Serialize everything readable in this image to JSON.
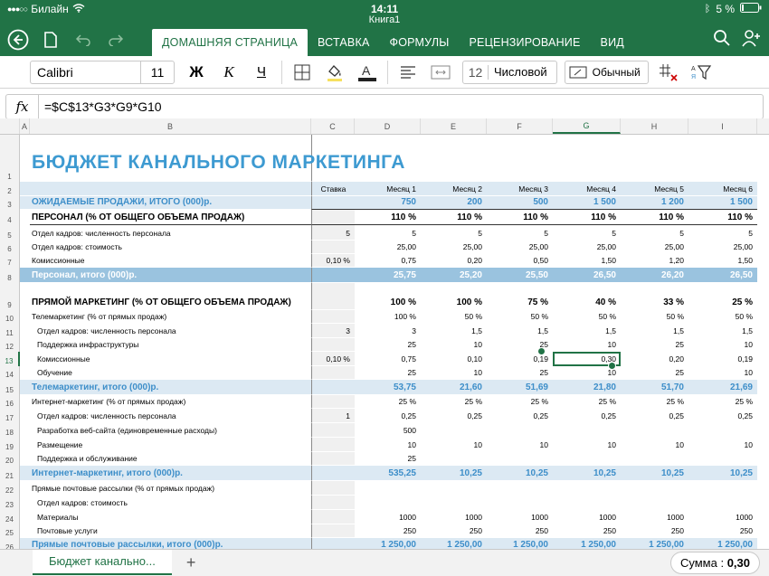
{
  "status": {
    "carrier": "Билайн",
    "time": "14:11",
    "battery": "5 %"
  },
  "doc_title": "Книга1",
  "tabs": [
    "ДОМАШНЯЯ СТРАНИЦА",
    "ВСТАВКА",
    "ФОРМУЛЫ",
    "РЕЦЕНЗИРОВАНИЕ",
    "ВИД"
  ],
  "toolbar": {
    "font_name": "Calibri",
    "font_size": "11",
    "bold": "Ж",
    "italic": "К",
    "underline": "Ч",
    "format_num": "12",
    "format_label": "Числовой",
    "style_label": "Обычный",
    "sort_icon_text": "А\nЯ"
  },
  "formula": {
    "fx": "fx",
    "text": "=$C$13*G3*G9*G10"
  },
  "columns": [
    "A",
    "B",
    "C",
    "D",
    "E",
    "F",
    "G",
    "H",
    "I"
  ],
  "selected_col": "G",
  "selected_row": "13",
  "rows": [
    {
      "n": "1",
      "type": "title",
      "b": "БЮДЖЕТ КАНАЛЬНОГО МАРКЕТИНГА",
      "vals": [
        "",
        "",
        "",
        "",
        "",
        "",
        ""
      ]
    },
    {
      "n": "2",
      "type": "hdr",
      "b": "",
      "vals": [
        "Ставка",
        "Месяц 1",
        "Месяц 2",
        "Месяц 3",
        "Месяц 4",
        "Месяц 5",
        "Месяц 6"
      ]
    },
    {
      "n": "3",
      "type": "sub",
      "b": "ОЖИДАЕМЫЕ ПРОДАЖИ, ИТОГО (000)р.",
      "vals": [
        "",
        "750",
        "200",
        "500",
        "1 500",
        "1 200",
        "1 500"
      ]
    },
    {
      "n": "4",
      "type": "section",
      "b": "ПЕРСОНАЛ (% ОТ ОБЩЕГО ОБЪЕМА ПРОДАЖ)",
      "vals": [
        "",
        "110 %",
        "110 %",
        "110 %",
        "110 %",
        "110 %",
        "110 %"
      ]
    },
    {
      "n": "5",
      "type": "norm",
      "b": "Отдел кадров: численность персонала",
      "vals": [
        "5",
        "5",
        "5",
        "5",
        "5",
        "5",
        "5"
      ]
    },
    {
      "n": "6",
      "type": "norm",
      "b": "Отдел кадров: стоимость",
      "vals": [
        "",
        "25,00",
        "25,00",
        "25,00",
        "25,00",
        "25,00",
        "25,00"
      ]
    },
    {
      "n": "7",
      "type": "norm",
      "b": "Комиссионные",
      "vals": [
        "0,10 %",
        "0,75",
        "0,20",
        "0,50",
        "1,50",
        "1,20",
        "1,50"
      ]
    },
    {
      "n": "8",
      "type": "band",
      "b": "Персонал, итого (000)р.",
      "vals": [
        "",
        "25,75",
        "25,20",
        "25,50",
        "26,50",
        "26,20",
        "26,50"
      ]
    },
    {
      "n": "9",
      "type": "section",
      "b": "ПРЯМОЙ МАРКЕТИНГ (% ОТ ОБЩЕГО ОБЪЕМА ПРОДАЖ)",
      "vals": [
        "",
        "100 %",
        "100 %",
        "75 %",
        "40 %",
        "33 %",
        "25 %"
      ]
    },
    {
      "n": "10",
      "type": "norm",
      "b": "Телемаркетинг (% от прямых продаж)",
      "vals": [
        "",
        "100 %",
        "50 %",
        "50 %",
        "50 %",
        "50 %",
        "50 %"
      ]
    },
    {
      "n": "11",
      "type": "ind",
      "b": "Отдел кадров: численность персонала",
      "vals": [
        "3",
        "3",
        "1,5",
        "1,5",
        "1,5",
        "1,5",
        "1,5"
      ]
    },
    {
      "n": "12",
      "type": "ind",
      "b": "Поддержка инфраструктуры",
      "vals": [
        "",
        "25",
        "10",
        "25",
        "10",
        "25",
        "10"
      ]
    },
    {
      "n": "13",
      "type": "ind",
      "b": "Комиссионные",
      "vals": [
        "0,10 %",
        "0,75",
        "0,10",
        "0,19",
        "0,30",
        "0,20",
        "0,19"
      ]
    },
    {
      "n": "14",
      "type": "ind",
      "b": "Обучение",
      "vals": [
        "",
        "25",
        "10",
        "25",
        "10",
        "25",
        "10"
      ]
    },
    {
      "n": "15",
      "type": "sub",
      "b": "Телемаркетинг, итого (000)р.",
      "vals": [
        "",
        "53,75",
        "21,60",
        "51,69",
        "21,80",
        "51,70",
        "21,69"
      ]
    },
    {
      "n": "16",
      "type": "norm",
      "b": "Интернет-маркетинг (% от прямых продаж)",
      "vals": [
        "",
        "25 %",
        "25 %",
        "25 %",
        "25 %",
        "25 %",
        "25 %"
      ]
    },
    {
      "n": "17",
      "type": "ind",
      "b": "Отдел кадров: численность персонала",
      "vals": [
        "1",
        "0,25",
        "0,25",
        "0,25",
        "0,25",
        "0,25",
        "0,25"
      ]
    },
    {
      "n": "18",
      "type": "ind",
      "b": "Разработка веб-сайта (единовременные расходы)",
      "vals": [
        "",
        "500",
        "",
        "",
        "",
        "",
        ""
      ]
    },
    {
      "n": "19",
      "type": "ind",
      "b": "Размещение",
      "vals": [
        "",
        "10",
        "10",
        "10",
        "10",
        "10",
        "10"
      ]
    },
    {
      "n": "20",
      "type": "ind",
      "b": "Поддержка и обслуживание",
      "vals": [
        "",
        "25",
        "",
        "",
        "",
        "",
        ""
      ]
    },
    {
      "n": "21",
      "type": "sub",
      "b": "Интернет-маркетинг, итого (000)р.",
      "vals": [
        "",
        "535,25",
        "10,25",
        "10,25",
        "10,25",
        "10,25",
        "10,25"
      ]
    },
    {
      "n": "22",
      "type": "norm",
      "b": "Прямые почтовые рассылки (% от прямых продаж)",
      "vals": [
        "",
        "",
        "",
        "",
        "",
        "",
        ""
      ]
    },
    {
      "n": "23",
      "type": "ind",
      "b": "Отдел кадров: стоимость",
      "vals": [
        "",
        "",
        "",
        "",
        "",
        "",
        ""
      ]
    },
    {
      "n": "24",
      "type": "ind",
      "b": "Материалы",
      "vals": [
        "",
        "1000",
        "1000",
        "1000",
        "1000",
        "1000",
        "1000"
      ]
    },
    {
      "n": "25",
      "type": "ind",
      "b": "Почтовые услуги",
      "vals": [
        "",
        "250",
        "250",
        "250",
        "250",
        "250",
        "250"
      ]
    },
    {
      "n": "26",
      "type": "sub",
      "b": "Прямые почтовые рассылки, итого (000)р.",
      "vals": [
        "",
        "1 250,00",
        "1 250,00",
        "1 250,00",
        "1 250,00",
        "1 250,00",
        "1 250,00"
      ]
    }
  ],
  "sheet_tab": "Бюджет канально...",
  "add_sheet": "+",
  "sum_label": "Сумма : ",
  "sum_value": "0,30"
}
